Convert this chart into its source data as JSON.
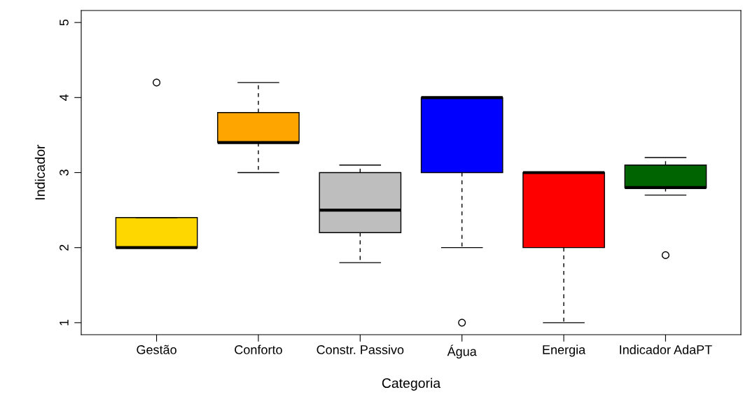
{
  "chart_data": {
    "type": "box",
    "xlabel": "Categoria",
    "ylabel": "Indicador",
    "categories": [
      "Gestão",
      "Conforto",
      "Constr. Passivo",
      "Água",
      "Energia",
      "Indicador AdaPT"
    ],
    "colors": [
      "#ffd700",
      "#ffa500",
      "#bebebe",
      "#0000ff",
      "#ff0000",
      "#006400"
    ],
    "boxes": [
      {
        "low": 2.0,
        "q1": 2.0,
        "median": 2.0,
        "q3": 2.4,
        "high": 2.4,
        "outliers": [
          4.2
        ]
      },
      {
        "low": 3.0,
        "q1": 3.4,
        "median": 3.4,
        "q3": 3.8,
        "high": 4.2
      },
      {
        "low": 1.8,
        "q1": 2.2,
        "median": 2.5,
        "q3": 3.0,
        "high": 3.1
      },
      {
        "low": 2.0,
        "q1": 3.0,
        "median": 4.0,
        "q3": 4.0,
        "high": 4.0,
        "outliers": [
          1.0
        ]
      },
      {
        "low": 1.0,
        "q1": 2.0,
        "median": 3.0,
        "q3": 3.0,
        "high": 3.0
      },
      {
        "low": 2.7,
        "q1": 2.8,
        "median": 2.8,
        "q3": 3.1,
        "high": 3.2,
        "outliers": [
          1.9
        ]
      }
    ],
    "ylim": [
      0.84,
      5.16
    ],
    "yticks": [
      1,
      2,
      3,
      4,
      5
    ],
    "grid": false,
    "legend": false
  }
}
